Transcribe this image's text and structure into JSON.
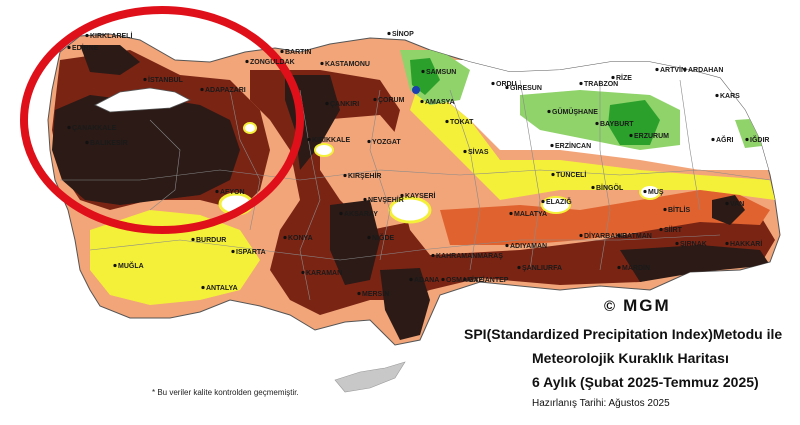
{
  "map": {
    "title_lines": [
      "SPI(Standardized Precipitation Index)Metodu ile",
      "Meteorolojik Kuraklık Haritası",
      "6 Aylık (Şubat 2025-Temmuz 2025)"
    ],
    "prepared_date": "Hazırlanış Tarihi: Ağustos 2025",
    "footnote": "* Bu veriler kalite kontrolden geçmemiştir.",
    "copyright": "MGM",
    "copyright_symbol": "©",
    "highlight_color": "#e0101a",
    "colors": {
      "extreme_drought": "#2b1a16",
      "severe_drought": "#7a2414",
      "moderate_drought": "#e0622f",
      "mild_drought": "#f2a579",
      "near_normal_dry": "#f4f03a",
      "normal": "#ffffff",
      "mild_wet": "#8fd36a",
      "moderate_wet": "#2ba12c",
      "severe_wet": "#1a3fb0",
      "boundary": "#8a8a8a"
    },
    "cities": [
      {
        "name": "KIRKLARELİ"
      },
      {
        "name": "EDİRNE"
      },
      {
        "name": "İSTANBUL"
      },
      {
        "name": "ÇANAKKALE"
      },
      {
        "name": "BALIKESİR"
      },
      {
        "name": "ADAPAZARI"
      },
      {
        "name": "ZONGULDAK"
      },
      {
        "name": "BARTIN"
      },
      {
        "name": "KASTAMONU"
      },
      {
        "name": "SİNOP"
      },
      {
        "name": "SAMSUN"
      },
      {
        "name": "AMASYA"
      },
      {
        "name": "ORDU"
      },
      {
        "name": "GİRESUN"
      },
      {
        "name": "TRABZON"
      },
      {
        "name": "RİZE"
      },
      {
        "name": "ARTVİN"
      },
      {
        "name": "ARDAHAN"
      },
      {
        "name": "KARS"
      },
      {
        "name": "AĞRI"
      },
      {
        "name": "IĞDIR"
      },
      {
        "name": "GÜMÜŞHANE"
      },
      {
        "name": "BAYBURT"
      },
      {
        "name": "ERZURUM"
      },
      {
        "name": "ERZİNCAN"
      },
      {
        "name": "TOKAT"
      },
      {
        "name": "SİVAS"
      },
      {
        "name": "ÇANKIRI"
      },
      {
        "name": "ÇORUM"
      },
      {
        "name": "YOZGAT"
      },
      {
        "name": "KIRIKKALE"
      },
      {
        "name": "KIRŞEHİR"
      },
      {
        "name": "NEVŞEHİR"
      },
      {
        "name": "KAYSERİ"
      },
      {
        "name": "AKSARAY"
      },
      {
        "name": "NİĞDE"
      },
      {
        "name": "AFYON"
      },
      {
        "name": "BURDUR"
      },
      {
        "name": "ISPARTA"
      },
      {
        "name": "KONYA"
      },
      {
        "name": "KARAMAN"
      },
      {
        "name": "MERSİN"
      },
      {
        "name": "ANTALYA"
      },
      {
        "name": "MUĞLA"
      },
      {
        "name": "TUNCELİ"
      },
      {
        "name": "BİNGÖL"
      },
      {
        "name": "MUŞ"
      },
      {
        "name": "BİTLİS"
      },
      {
        "name": "VAN"
      },
      {
        "name": "ELAZIĞ"
      },
      {
        "name": "MALATYA"
      },
      {
        "name": "DİYARBAKIR"
      },
      {
        "name": "BATMAN"
      },
      {
        "name": "SİİRT"
      },
      {
        "name": "ŞIRNAK"
      },
      {
        "name": "HAKKARİ"
      },
      {
        "name": "MARDİN"
      },
      {
        "name": "ADIYAMAN"
      },
      {
        "name": "ŞANLIURFA"
      },
      {
        "name": "KAHRAMANMARAŞ"
      },
      {
        "name": "GAZİANTEP"
      },
      {
        "name": "OSMANİYE"
      },
      {
        "name": "ADANA"
      }
    ]
  }
}
